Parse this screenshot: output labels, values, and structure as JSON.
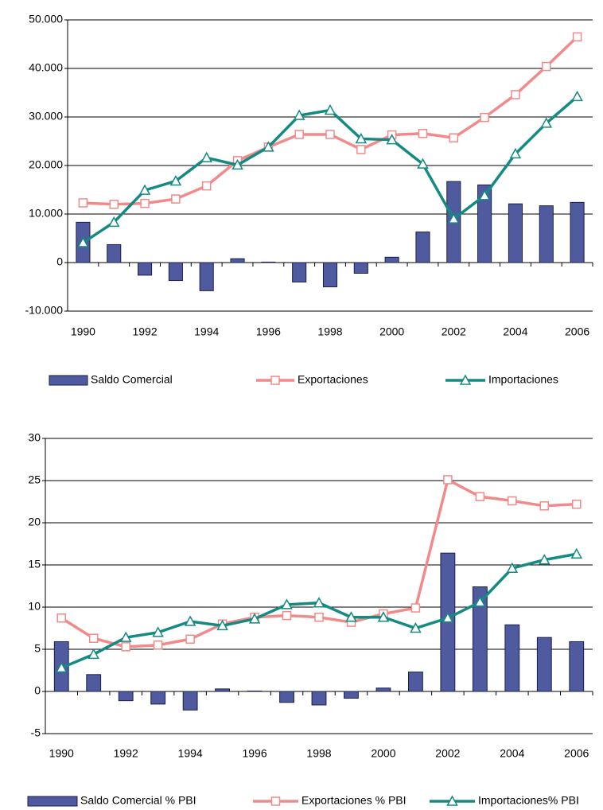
{
  "chart_data": [
    {
      "type": "combo",
      "categories": [
        "1990",
        null,
        "1992",
        null,
        "1994",
        null,
        "1996",
        null,
        "1998",
        null,
        "2000",
        null,
        "2002",
        null,
        "2004",
        null,
        "2006"
      ],
      "series": [
        {
          "name": "Saldo Comercial",
          "type": "bar",
          "color": "#4f5b9e",
          "values": [
            8300,
            3700,
            -2600,
            -3700,
            -5800,
            800,
            100,
            -4000,
            -5000,
            -2200,
            1100,
            6300,
            16700,
            16000,
            12100,
            11700,
            12400
          ]
        },
        {
          "name": "Exportaciones",
          "type": "line",
          "marker": "square",
          "color": "#f28a8a",
          "values": [
            12300,
            12000,
            12200,
            13100,
            15800,
            21000,
            23800,
            26400,
            26400,
            23300,
            26300,
            26600,
            25700,
            29900,
            34600,
            40400,
            46500
          ]
        },
        {
          "name": "Importaciones",
          "type": "line",
          "marker": "triangle",
          "color": "#138a82",
          "values": [
            4100,
            8300,
            14900,
            16800,
            21600,
            20100,
            23800,
            30300,
            31400,
            25500,
            25300,
            20300,
            9000,
            13800,
            22400,
            28700,
            34200
          ]
        }
      ],
      "ylim": [
        -10000,
        50000
      ],
      "yticks": [
        {
          "value": -10000,
          "label": "-10.000"
        },
        0,
        {
          "value": 10000,
          "label": "10.000"
        },
        {
          "value": 20000,
          "label": "20.000"
        },
        {
          "value": 30000,
          "label": "30.000"
        },
        {
          "value": 40000,
          "label": "40.000"
        },
        {
          "value": 50000,
          "label": "50.000"
        }
      ],
      "grid": true
    },
    {
      "type": "combo",
      "categories": [
        "1990",
        null,
        "1992",
        null,
        "1994",
        null,
        "1996",
        null,
        "1998",
        null,
        "2000",
        null,
        "2002",
        null,
        "2004",
        null,
        "2006"
      ],
      "series": [
        {
          "name": "Saldo Comercial % PBI",
          "type": "bar",
          "color": "#4f5b9e",
          "values": [
            5.9,
            2.0,
            -1.1,
            -1.5,
            -2.2,
            0.3,
            0.05,
            -1.3,
            -1.6,
            -0.8,
            0.4,
            2.3,
            16.4,
            12.4,
            7.9,
            6.4,
            5.9
          ]
        },
        {
          "name": "Exportaciones % PBI",
          "type": "line",
          "marker": "square",
          "color": "#f28a8a",
          "values": [
            8.7,
            6.3,
            5.3,
            5.5,
            6.2,
            8.0,
            8.8,
            9.0,
            8.8,
            8.2,
            9.2,
            9.9,
            25.1,
            23.1,
            22.6,
            22.0,
            22.2
          ]
        },
        {
          "name": "Importaciones% PBI",
          "type": "line",
          "marker": "triangle",
          "color": "#138a82",
          "values": [
            2.8,
            4.4,
            6.4,
            7.0,
            8.3,
            7.8,
            8.6,
            10.3,
            10.5,
            8.8,
            8.8,
            7.5,
            8.7,
            10.6,
            14.6,
            15.6,
            16.3
          ]
        }
      ],
      "ylim": [
        -5,
        30
      ],
      "yticks": [
        -5,
        0,
        5,
        10,
        15,
        20,
        25,
        30
      ],
      "grid": true
    }
  ]
}
